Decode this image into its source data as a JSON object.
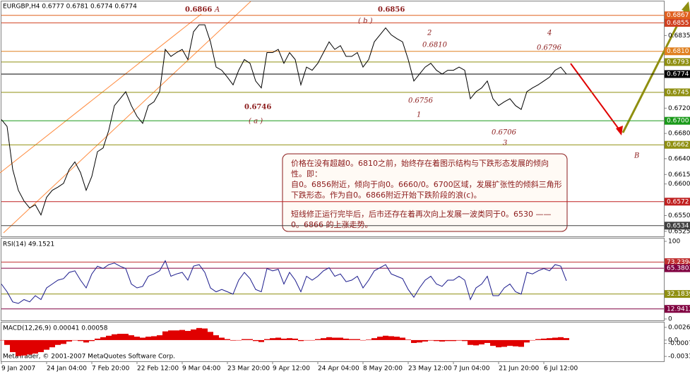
{
  "chart_data": [
    {
      "type": "line",
      "title": "EURGBP,H4  0.6777 0.6781 0.6774 0.6774",
      "color": "#000000",
      "categories": [
        "9 Jan 2007",
        null,
        null,
        null,
        null,
        null,
        null,
        null,
        "24 Jan 04:00",
        null,
        null,
        null,
        null,
        null,
        null,
        null,
        "7 Feb 20:00",
        null,
        null,
        null,
        null,
        null,
        null,
        null,
        "22 Feb 12:00",
        null,
        null,
        null,
        null,
        null,
        null,
        null,
        "9 Mar 04:00",
        null,
        null,
        null,
        null,
        null,
        null,
        null,
        "23 Mar 20:00",
        null,
        null,
        null,
        null,
        null,
        null,
        null,
        "9 Apr 12:00",
        null,
        null,
        null,
        null,
        null,
        null,
        null,
        "24 Apr 04:00",
        null,
        null,
        null,
        null,
        null,
        null,
        null,
        "8 May 20:00",
        null,
        null,
        null,
        null,
        null,
        null,
        null,
        "23 May 12:00",
        null,
        null,
        null,
        null,
        null,
        null,
        null,
        "7 Jun 04:00",
        null,
        null,
        null,
        null,
        null,
        null,
        null,
        "21 Jun 20:00",
        null,
        null,
        null,
        null,
        null,
        null,
        null,
        "6 Jul 12:00",
        null,
        null,
        null,
        null
      ],
      "values": [
        0.6702,
        0.6691,
        0.6623,
        0.659,
        0.6573,
        0.6562,
        0.6567,
        0.6551,
        0.6579,
        0.659,
        0.6595,
        0.6601,
        0.6623,
        0.6635,
        0.6618,
        0.659,
        0.6612,
        0.6651,
        0.6657,
        0.6685,
        0.6724,
        0.6735,
        0.6746,
        0.6724,
        0.6707,
        0.6696,
        0.6724,
        0.673,
        0.6746,
        0.6813,
        0.6802,
        0.6808,
        0.6813,
        0.6797,
        0.6841,
        0.6852,
        0.6852,
        0.6825,
        0.6785,
        0.678,
        0.6769,
        0.6757,
        0.678,
        0.6797,
        0.6791,
        0.6763,
        0.6752,
        0.6808,
        0.6808,
        0.6813,
        0.6791,
        0.6808,
        0.6797,
        0.6757,
        0.6785,
        0.678,
        0.6791,
        0.6808,
        0.6825,
        0.6813,
        0.6819,
        0.6802,
        0.6802,
        0.6808,
        0.6785,
        0.6797,
        0.6825,
        0.6836,
        0.6847,
        0.6836,
        0.683,
        0.6825,
        0.6797,
        0.6763,
        0.6774,
        0.6785,
        0.6791,
        0.678,
        0.6774,
        0.678,
        0.678,
        0.6785,
        0.678,
        0.6735,
        0.6746,
        0.6752,
        0.6763,
        0.6735,
        0.6724,
        0.673,
        0.6735,
        0.6724,
        0.6718,
        0.6746,
        0.6752,
        0.6757,
        0.6763,
        0.6769,
        0.678,
        0.6785,
        0.6774
      ],
      "ylim": [
        0.6517,
        0.6889
      ],
      "yticks": [
        0.6835,
        {
          "value": 0.672,
          "label": "0.6720"
        },
        {
          "value": 0.668,
          "label": "0.6680"
        },
        {
          "value": 0.664,
          "label": "0.6640"
        },
        0.6615,
        {
          "value": 0.66,
          "label": "0.6600"
        },
        {
          "value": 0.655,
          "label": "0.6550"
        },
        0.6525
      ],
      "levels": [
        {
          "value": 0.6867,
          "color": "#e0601f"
        },
        {
          "value": 0.6855,
          "color": "#d04020"
        },
        {
          "value": 0.681,
          "label": "0.6810",
          "color": "#e08020"
        },
        {
          "value": 0.6793,
          "color": "#8f8f10"
        },
        {
          "value": 0.6774,
          "color": "#000000"
        },
        {
          "value": 0.6745,
          "color": "#8f8f10"
        },
        {
          "value": 0.67,
          "label": "0.6700",
          "color": "#1a9a1a"
        },
        {
          "value": 0.6662,
          "color": "#8f8f10"
        },
        {
          "value": 0.6572,
          "color": "#c02020"
        },
        {
          "value": 0.6534,
          "color": "#404040"
        }
      ],
      "annotations": [
        "0.6866",
        "A",
        "( b )",
        "0.6856",
        "2",
        "0.6810",
        "4",
        "0.6796",
        "0.6746",
        "( a )",
        "0.6756",
        "1",
        "0.6706",
        "3",
        "B"
      ],
      "note": {
        "lines": [
          "价格在没有超越0。6810之前，始终存在着图示结构与下跌形态发展的倾向",
          "性。即：",
          "自0。6856附近，倾向于向0。6660/0。6700区域，发展扩张性的倾斜三角形",
          "下跌形态。作为自0。6866附近开始下跌阶段的浪(c)。",
          "短线修正运行完毕后，后市还存在着再次向上发展一波类同于0。6530 ——",
          "0。6866 的上涨走势。"
        ]
      },
      "copyright": "MetaTrader, © 2001-2007 MetaQuotes Software Corp."
    },
    {
      "type": "line",
      "title": "RSI(14) 49.1521",
      "color": "#1a1a8c",
      "values": [
        45,
        35,
        22,
        20,
        25,
        22,
        30,
        25,
        40,
        45,
        50,
        52,
        60,
        62,
        50,
        40,
        58,
        68,
        65,
        70,
        72,
        68,
        65,
        45,
        40,
        42,
        55,
        58,
        62,
        75,
        55,
        58,
        60,
        50,
        68,
        70,
        60,
        40,
        35,
        38,
        35,
        32,
        50,
        60,
        52,
        38,
        35,
        65,
        62,
        64,
        45,
        60,
        50,
        35,
        55,
        50,
        55,
        62,
        66,
        55,
        58,
        48,
        50,
        55,
        40,
        50,
        62,
        66,
        70,
        58,
        55,
        52,
        38,
        28,
        40,
        50,
        55,
        45,
        42,
        50,
        50,
        55,
        50,
        25,
        40,
        45,
        55,
        30,
        30,
        40,
        45,
        35,
        32,
        60,
        58,
        62,
        65,
        62,
        70,
        68,
        49.1521
      ],
      "ylim": [
        0,
        100
      ],
      "yticks": [
        0,
        100
      ],
      "levels": [
        {
          "value": 73.2394,
          "color": "#c03030"
        },
        {
          "value": 65.3803,
          "color": "#800040"
        },
        {
          "value": 32.1839,
          "color": "#8f8f10"
        },
        {
          "value": 12.9412,
          "color": "#800040"
        }
      ]
    },
    {
      "type": "bar",
      "title": "MACD(12,26,9) 0.00041 0.00058",
      "color": "#e00000",
      "values": [
        0,
        -0.001,
        -0.0025,
        -0.0033,
        -0.0032,
        -0.003,
        -0.0028,
        -0.0025,
        -0.002,
        -0.0015,
        -0.001,
        -0.0008,
        -0.0003,
        0,
        -0.0002,
        -0.0005,
        -0.0002,
        0.0003,
        0.0006,
        0.0009,
        0.0012,
        0.0013,
        0.0013,
        0.001,
        0.0007,
        0.0005,
        0.0007,
        0.0008,
        0.001,
        0.0018,
        0.002,
        0.002,
        0.0021,
        0.0019,
        0.0022,
        0.0025,
        0.0024,
        0.0017,
        0.001,
        0.0005,
        0.0002,
        -0.0001,
        0,
        0.0002,
        0.0002,
        -0.0002,
        -0.0004,
        0.0002,
        0.0004,
        0.0005,
        0.0003,
        0.0004,
        0.0003,
        -0.0002,
        0,
        0,
        0.0002,
        0.0004,
        0.0006,
        0.0005,
        0.0005,
        0.0003,
        0.0002,
        0.0002,
        0,
        0.0001,
        0.0004,
        0.0007,
        0.0009,
        0.0008,
        0.0007,
        0.0005,
        0.0001,
        -0.0006,
        -0.0005,
        -0.0003,
        -0.0001,
        -0.0002,
        -0.0003,
        -0.0002,
        -0.0002,
        -0.0001,
        -0.0002,
        -0.001,
        -0.0011,
        -0.0009,
        -0.0006,
        -0.0012,
        -0.0015,
        -0.0014,
        -0.0012,
        -0.0013,
        -0.0014,
        -0.0005,
        0,
        0.0002,
        0.0003,
        0.0004,
        0.0005,
        0.0006,
        0.00041
      ],
      "ylim": [
        -0.0044,
        0.0035
      ],
      "yticks": [
        0.00264,
        {
          "value": 0,
          "label": "0.0"
        },
        -0.0007,
        -0.00339
      ]
    }
  ]
}
